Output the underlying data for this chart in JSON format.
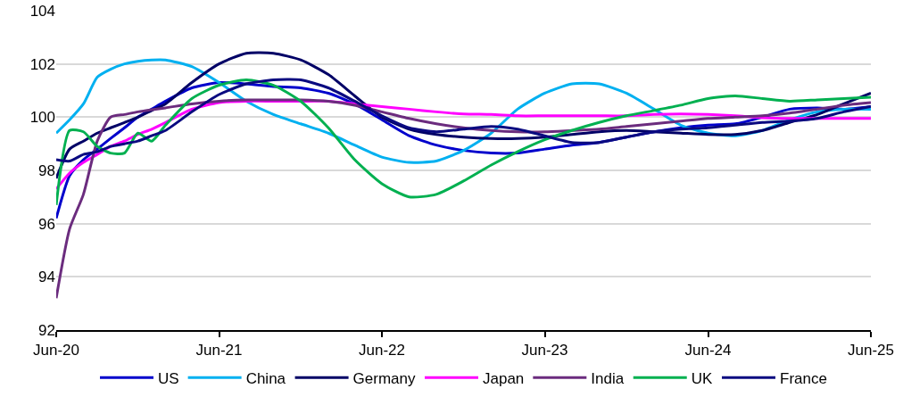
{
  "chart_data": {
    "type": "line",
    "x": [
      "2020-06",
      "2020-07",
      "2020-08",
      "2020-09",
      "2020-10",
      "2020-11",
      "2020-12",
      "2021-01",
      "2021-02",
      "2021-04",
      "2021-06",
      "2021-08",
      "2021-10",
      "2021-12",
      "2022-02",
      "2022-04",
      "2022-06",
      "2022-08",
      "2022-10",
      "2022-12",
      "2023-02",
      "2023-04",
      "2023-06",
      "2023-08",
      "2023-10",
      "2023-12",
      "2024-02",
      "2024-04",
      "2024-06",
      "2024-08",
      "2024-10",
      "2024-12",
      "2025-02",
      "2025-04",
      "2025-06"
    ],
    "series": [
      {
        "name": "US",
        "color": "#0000cc",
        "values": [
          96.2,
          97.8,
          98.4,
          98.8,
          99.2,
          99.6,
          100.0,
          100.3,
          100.6,
          101.1,
          101.3,
          101.25,
          101.15,
          101.1,
          100.9,
          100.5,
          99.9,
          99.3,
          98.95,
          98.75,
          98.65,
          98.65,
          98.8,
          98.95,
          99.05,
          99.25,
          99.45,
          99.6,
          99.7,
          99.75,
          100.0,
          100.3,
          100.35,
          100.3,
          100.4
        ]
      },
      {
        "name": "China",
        "color": "#00b0f0",
        "values": [
          99.4,
          99.9,
          100.5,
          101.5,
          101.8,
          102.0,
          102.1,
          102.15,
          102.15,
          101.9,
          101.3,
          100.6,
          100.1,
          99.75,
          99.4,
          98.95,
          98.5,
          98.3,
          98.35,
          98.75,
          99.4,
          100.3,
          100.9,
          101.25,
          101.25,
          100.9,
          100.3,
          99.7,
          99.4,
          99.3,
          99.5,
          99.9,
          100.2,
          100.3,
          100.3
        ]
      },
      {
        "name": "Germany",
        "color": "#000066",
        "values": [
          97.7,
          98.8,
          99.1,
          99.4,
          99.6,
          99.8,
          100.0,
          100.25,
          100.5,
          101.3,
          102.0,
          102.4,
          102.4,
          102.15,
          101.6,
          100.8,
          100.0,
          99.55,
          99.35,
          99.25,
          99.2,
          99.2,
          99.25,
          99.35,
          99.45,
          99.5,
          99.45,
          99.4,
          99.35,
          99.35,
          99.5,
          99.8,
          100.1,
          100.5,
          100.9
        ]
      },
      {
        "name": "Japan",
        "color": "#ff00ff",
        "values": [
          97.3,
          97.9,
          98.3,
          98.6,
          98.9,
          99.1,
          99.35,
          99.55,
          99.8,
          100.3,
          100.55,
          100.6,
          100.6,
          100.6,
          100.6,
          100.5,
          100.4,
          100.3,
          100.2,
          100.12,
          100.1,
          100.05,
          100.05,
          100.05,
          100.05,
          100.05,
          100.1,
          100.12,
          100.1,
          100.05,
          99.98,
          99.95,
          99.95,
          99.95,
          99.95
        ]
      },
      {
        "name": "India",
        "color": "#6b2c7e",
        "values": [
          93.2,
          95.8,
          97.1,
          99.1,
          100.0,
          100.1,
          100.2,
          100.28,
          100.35,
          100.5,
          100.6,
          100.65,
          100.65,
          100.65,
          100.6,
          100.45,
          100.2,
          99.95,
          99.75,
          99.6,
          99.5,
          99.45,
          99.45,
          99.5,
          99.55,
          99.65,
          99.75,
          99.85,
          99.95,
          100.0,
          100.05,
          100.15,
          100.3,
          100.45,
          100.55
        ]
      },
      {
        "name": "UK",
        "color": "#00b050",
        "values": [
          96.7,
          99.5,
          99.45,
          98.9,
          98.65,
          98.65,
          99.4,
          99.1,
          99.7,
          100.7,
          101.2,
          101.4,
          101.2,
          100.6,
          99.6,
          98.4,
          97.5,
          97.0,
          97.1,
          97.6,
          98.2,
          98.7,
          99.15,
          99.5,
          99.8,
          100.05,
          100.25,
          100.45,
          100.7,
          100.8,
          100.7,
          100.6,
          100.65,
          100.7,
          100.75
        ]
      },
      {
        "name": "France",
        "color": "#0a0a80",
        "values": [
          98.4,
          98.35,
          98.6,
          98.7,
          98.9,
          99.0,
          99.1,
          99.3,
          99.5,
          100.2,
          100.85,
          101.25,
          101.4,
          101.4,
          101.1,
          100.6,
          100.05,
          99.6,
          99.45,
          99.55,
          99.65,
          99.55,
          99.3,
          99.05,
          99.05,
          99.25,
          99.45,
          99.55,
          99.6,
          99.7,
          99.8,
          99.85,
          99.95,
          100.2,
          100.4
        ]
      }
    ],
    "xlim": [
      "2020-06",
      "2025-06"
    ],
    "xticks": [
      {
        "value": "2020-06",
        "label": "Jun-20"
      },
      {
        "value": "2021-06",
        "label": "Jun-21"
      },
      {
        "value": "2022-06",
        "label": "Jun-22"
      },
      {
        "value": "2023-06",
        "label": "Jun-23"
      },
      {
        "value": "2024-06",
        "label": "Jun-24"
      },
      {
        "value": "2025-06",
        "label": "Jun-25"
      }
    ],
    "ylim": [
      92,
      104
    ],
    "yticks": [
      92,
      94,
      96,
      98,
      100,
      102,
      104
    ],
    "grid": "y",
    "legend": "bottom",
    "marker": "none",
    "line_style": "solid"
  }
}
